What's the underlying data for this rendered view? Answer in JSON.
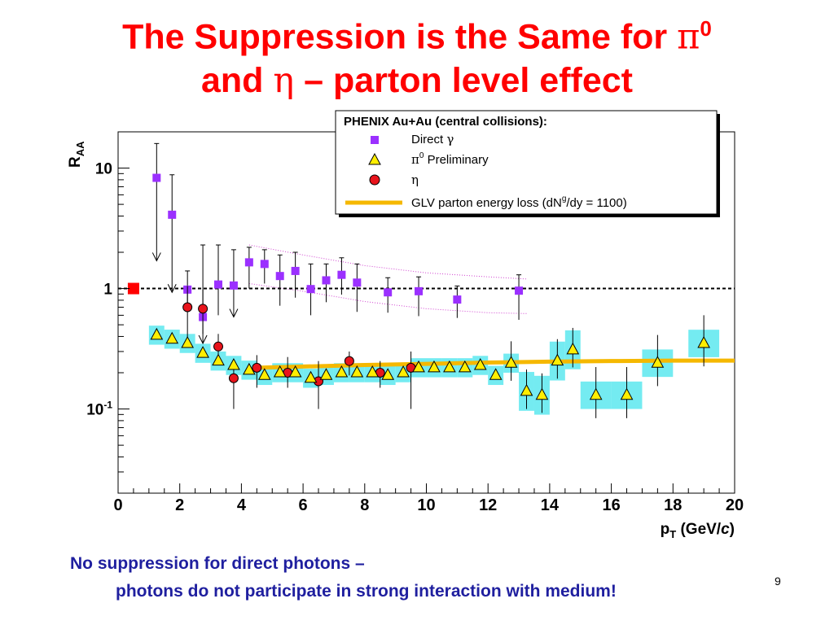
{
  "slide": {
    "title_line1_text": "The Suppression is the Same for ",
    "title_line1_symbol": "π",
    "title_line1_sup": "0",
    "title_line2_pre": "and ",
    "title_line2_symbol": "η",
    "title_line2_post": " – parton level effect",
    "footnote_line1": "No suppression for direct photons –",
    "footnote_line2": "photons do not participate in strong interaction with medium!",
    "page_number": "9"
  },
  "colors": {
    "title": "#ff0000",
    "footnote": "#1f1f9f",
    "direct_gamma": "#9b30ff",
    "pi0_fill": "#ffee00",
    "eta_fill": "#e8141c",
    "glv_band": "#f5b800",
    "sys_band": "#5ce8ee",
    "norm_box": "#ff0000"
  },
  "chart_data": {
    "type": "scatter",
    "x_axis": {
      "label_main": "p",
      "label_sub": "T",
      "label_rest": " (GeV/",
      "label_italic": "c",
      "label_end": ")",
      "range": [
        0,
        20
      ],
      "ticks": [
        "0",
        "2",
        "4",
        "6",
        "8",
        "10",
        "12",
        "14",
        "16",
        "18",
        "20"
      ]
    },
    "y_axis": {
      "label_main": "R",
      "label_sub": "AA",
      "scale": "log",
      "range": [
        0.02,
        20
      ],
      "tick_labels": [
        {
          "value": 10,
          "base": "10",
          "sup": ""
        },
        {
          "value": 1,
          "base": "1",
          "sup": ""
        },
        {
          "value": 0.1,
          "base": "10",
          "sup": "-1"
        }
      ]
    },
    "reference_line": 1,
    "legend": {
      "title": "PHENIX Au+Au (central collisions):",
      "entries": [
        {
          "key": "direct",
          "symbol_text": "",
          "pre": "Direct ",
          "greek": "γ",
          "post": "",
          "sup": "",
          "after_sup": ""
        },
        {
          "key": "pi0",
          "symbol_text": "",
          "pre": "",
          "greek": "π",
          "sup": "0",
          "post": " Preliminary",
          "after_sup": ""
        },
        {
          "key": "eta",
          "symbol_text": "",
          "pre": "",
          "greek": "η",
          "post": "",
          "sup": "",
          "after_sup": ""
        },
        {
          "key": "glv",
          "symbol_text": "",
          "pre": "GLV parton energy loss (dN",
          "greek": "",
          "sup": "g",
          "post": "",
          "after_sup": "/dy = 1100)"
        }
      ]
    },
    "series": [
      {
        "name": "Direct γ",
        "key": "direct",
        "points": [
          {
            "x": 1.25,
            "y": 8.3,
            "upper_limit": true,
            "yhi": 16.0,
            "ylo": 1.7
          },
          {
            "x": 1.75,
            "y": 4.1,
            "upper_limit": true,
            "yhi": 8.8,
            "ylo": 0.93
          },
          {
            "x": 2.25,
            "y": 0.98,
            "ylo": 0.66,
            "yhi": 1.4
          },
          {
            "x": 2.75,
            "y": 0.58,
            "upper_limit": true,
            "yhi": 2.3,
            "ylo": 0.35
          },
          {
            "x": 3.25,
            "y": 1.08,
            "ylo": 0.6,
            "yhi": 2.3
          },
          {
            "x": 3.75,
            "y": 1.06,
            "upper_limit": true,
            "yhi": 2.1,
            "ylo": 0.58
          },
          {
            "x": 4.25,
            "y": 1.65,
            "ylo": 1.0,
            "yhi": 2.2
          },
          {
            "x": 4.75,
            "y": 1.6,
            "ylo": 1.1,
            "yhi": 2.1
          },
          {
            "x": 5.25,
            "y": 1.27,
            "ylo": 0.72,
            "yhi": 1.9
          },
          {
            "x": 5.75,
            "y": 1.4,
            "ylo": 0.84,
            "yhi": 2.0
          },
          {
            "x": 6.25,
            "y": 0.99,
            "ylo": 0.6,
            "yhi": 1.6
          },
          {
            "x": 6.75,
            "y": 1.17,
            "ylo": 0.77,
            "yhi": 1.6
          },
          {
            "x": 7.25,
            "y": 1.3,
            "ylo": 0.89,
            "yhi": 1.8
          },
          {
            "x": 7.75,
            "y": 1.12,
            "ylo": 0.64,
            "yhi": 1.6
          },
          {
            "x": 8.75,
            "y": 0.93,
            "ylo": 0.63,
            "yhi": 1.23
          },
          {
            "x": 9.75,
            "y": 0.95,
            "ylo": 0.59,
            "yhi": 1.25
          },
          {
            "x": 11.0,
            "y": 0.81,
            "ylo": 0.57,
            "yhi": 1.05
          },
          {
            "x": 13.0,
            "y": 0.96,
            "ylo": 0.55,
            "yhi": 1.3
          }
        ]
      },
      {
        "name": "π0 Preliminary",
        "key": "pi0",
        "points": [
          {
            "x": 1.25,
            "y": 0.41
          },
          {
            "x": 1.75,
            "y": 0.38
          },
          {
            "x": 2.25,
            "y": 0.35
          },
          {
            "x": 2.75,
            "y": 0.29
          },
          {
            "x": 3.25,
            "y": 0.25
          },
          {
            "x": 3.75,
            "y": 0.23
          },
          {
            "x": 4.25,
            "y": 0.21
          },
          {
            "x": 4.75,
            "y": 0.19
          },
          {
            "x": 5.25,
            "y": 0.2
          },
          {
            "x": 5.75,
            "y": 0.2
          },
          {
            "x": 6.25,
            "y": 0.18
          },
          {
            "x": 6.75,
            "y": 0.19
          },
          {
            "x": 7.25,
            "y": 0.2
          },
          {
            "x": 7.75,
            "y": 0.2
          },
          {
            "x": 8.25,
            "y": 0.2
          },
          {
            "x": 8.75,
            "y": 0.19
          },
          {
            "x": 9.25,
            "y": 0.2
          },
          {
            "x": 9.75,
            "y": 0.22
          },
          {
            "x": 10.25,
            "y": 0.22
          },
          {
            "x": 10.75,
            "y": 0.22
          },
          {
            "x": 11.25,
            "y": 0.22
          },
          {
            "x": 11.75,
            "y": 0.23
          },
          {
            "x": 12.25,
            "y": 0.19
          },
          {
            "x": 12.75,
            "y": 0.24
          },
          {
            "x": 13.25,
            "y": 0.14
          },
          {
            "x": 13.75,
            "y": 0.13
          },
          {
            "x": 14.25,
            "y": 0.25
          },
          {
            "x": 14.75,
            "y": 0.31
          },
          {
            "x": 15.5,
            "y": 0.13
          },
          {
            "x": 16.5,
            "y": 0.13
          },
          {
            "x": 17.5,
            "y": 0.24
          },
          {
            "x": 19.0,
            "y": 0.35
          }
        ]
      },
      {
        "name": "η",
        "key": "eta",
        "points": [
          {
            "x": 2.25,
            "y": 0.7,
            "ylo": 0.38,
            "yhi": 1.05
          },
          {
            "x": 2.75,
            "y": 0.68,
            "ylo": 0.42,
            "yhi": 0.98
          },
          {
            "x": 3.25,
            "y": 0.33,
            "ylo": 0.25,
            "yhi": 0.42
          },
          {
            "x": 3.75,
            "y": 0.18,
            "ylo": 0.1,
            "yhi": 0.24
          },
          {
            "x": 4.5,
            "y": 0.22,
            "ylo": 0.15,
            "yhi": 0.28
          },
          {
            "x": 5.5,
            "y": 0.2,
            "ylo": 0.15,
            "yhi": 0.27
          },
          {
            "x": 6.5,
            "y": 0.17,
            "ylo": 0.1,
            "yhi": 0.25
          },
          {
            "x": 7.5,
            "y": 0.25,
            "ylo": 0.19,
            "yhi": 0.3
          },
          {
            "x": 8.5,
            "y": 0.2,
            "ylo": 0.15,
            "yhi": 0.25
          },
          {
            "x": 9.5,
            "y": 0.22,
            "ylo": 0.1,
            "yhi": 0.3
          }
        ]
      },
      {
        "name": "GLV parton energy loss (dNg/dy = 1100)",
        "key": "glv",
        "points": [
          {
            "x": 4.5,
            "y": 0.22
          },
          {
            "x": 6,
            "y": 0.225
          },
          {
            "x": 8,
            "y": 0.232
          },
          {
            "x": 10,
            "y": 0.237
          },
          {
            "x": 12,
            "y": 0.243
          },
          {
            "x": 14,
            "y": 0.247
          },
          {
            "x": 16,
            "y": 0.25
          },
          {
            "x": 18,
            "y": 0.252
          },
          {
            "x": 20,
            "y": 0.252
          }
        ]
      }
    ]
  }
}
